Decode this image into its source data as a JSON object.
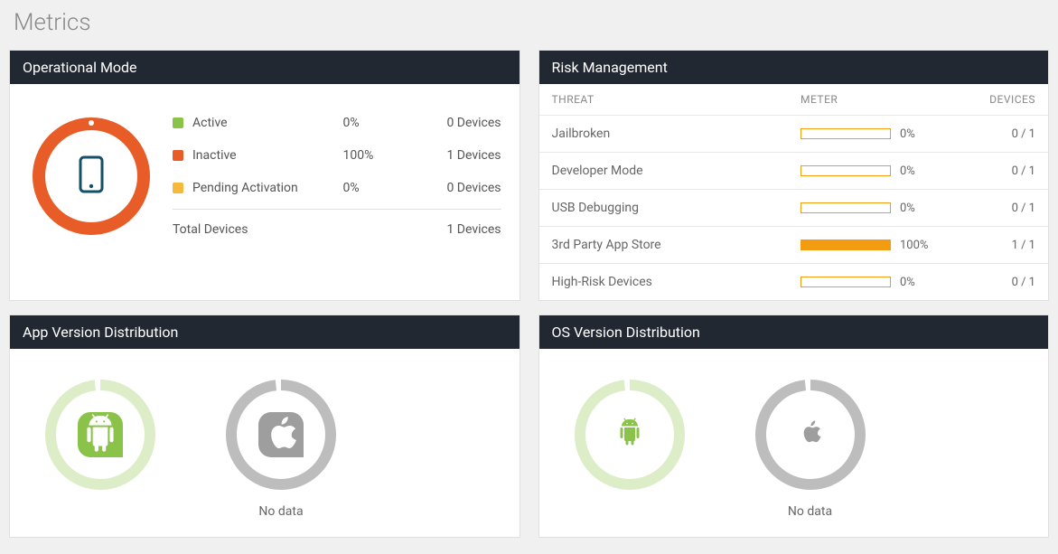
{
  "page": {
    "title": "Metrics"
  },
  "panels": {
    "operationalMode": {
      "title": "Operational Mode",
      "donut": {
        "track_color": "#f0f0f0",
        "fill_color": "#e85c27",
        "stroke_width": 14,
        "percent": 100
      },
      "device_icon": {
        "color": "#14506a"
      },
      "legend": [
        {
          "label": "Active",
          "pct": "0%",
          "devices": "0 Devices",
          "color": "#8bc34a"
        },
        {
          "label": "Inactive",
          "pct": "100%",
          "devices": "1 Devices",
          "color": "#e85c27"
        },
        {
          "label": "Pending Activation",
          "pct": "0%",
          "devices": "0 Devices",
          "color": "#f6b93b"
        }
      ],
      "total": {
        "label": "Total Devices",
        "devices": "1 Devices"
      }
    },
    "riskManagement": {
      "title": "Risk Management",
      "columns": {
        "threat": "THREAT",
        "meter": "METER",
        "devices": "DEVICES"
      },
      "meter_color": "#f39c12",
      "rows": [
        {
          "label": "Jailbroken",
          "pct": 0,
          "pct_label": "0%",
          "devices": "0 / 1"
        },
        {
          "label": "Developer Mode",
          "pct": 0,
          "pct_label": "0%",
          "devices": "0 / 1"
        },
        {
          "label": "USB Debugging",
          "pct": 0,
          "pct_label": "0%",
          "devices": "0 / 1"
        },
        {
          "label": "3rd Party App Store",
          "pct": 100,
          "pct_label": "100%",
          "devices": "1 / 1"
        },
        {
          "label": "High-Risk Devices",
          "pct": 0,
          "pct_label": "0%",
          "devices": "0 / 1"
        }
      ]
    },
    "appVersion": {
      "title": "App Version Distribution",
      "items": [
        {
          "platform": "android",
          "ring_color": "#8bc34a",
          "ring_percent": 100,
          "ring_style": "faded",
          "icon_bg": "#8bc34a",
          "icon_color": "#ffffff",
          "caption": ""
        },
        {
          "platform": "apple",
          "ring_color": "#bdbdbd",
          "ring_percent": 100,
          "ring_style": "solid",
          "icon_bg": "#9e9e9e",
          "icon_color": "#ffffff",
          "caption": "No data"
        }
      ]
    },
    "osVersion": {
      "title": "OS Version Distribution",
      "items": [
        {
          "platform": "android",
          "ring_color": "#8bc34a",
          "ring_percent": 100,
          "ring_style": "faded",
          "icon_bg": "transparent",
          "icon_color": "#8bc34a",
          "caption": ""
        },
        {
          "platform": "apple",
          "ring_color": "#bdbdbd",
          "ring_percent": 100,
          "ring_style": "solid",
          "icon_bg": "transparent",
          "icon_color": "#9e9e9e",
          "caption": "No data"
        }
      ]
    }
  }
}
